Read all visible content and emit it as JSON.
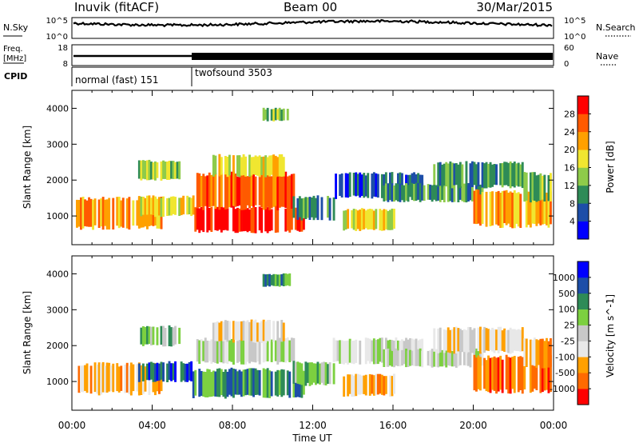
{
  "header": {
    "station": "Inuvik (fitACF)",
    "beam": "Beam 00",
    "date": "30/Mar/2015"
  },
  "chart_data": [
    {
      "panel": "nsky-nsearch",
      "type": "line",
      "left_label": "N.Sky",
      "right_label": "N.Search",
      "left_ticks": [
        "10^5",
        "10^0"
      ],
      "right_ticks": [
        "10^5",
        "10^0"
      ]
    },
    {
      "panel": "freq-nave",
      "type": "line",
      "left_label_lines": [
        "Freq.",
        "[MHz]"
      ],
      "right_label": "Nave",
      "left_ticks": [
        "18",
        "8"
      ],
      "right_ticks": [
        "60",
        "0"
      ]
    },
    {
      "panel": "cpid",
      "type": "table",
      "label": "CPID",
      "modes": [
        {
          "name": "normal (fast) 151",
          "start_hour": 0,
          "end_hour": 6
        },
        {
          "name": "twofsound 3503",
          "start_hour": 6,
          "end_hour": 24
        }
      ]
    },
    {
      "panel": "power",
      "type": "heatmap",
      "ylabel": "Slant Range [km]",
      "ylim": [
        200,
        4500
      ],
      "yticks": [
        1000,
        2000,
        3000,
        4000
      ],
      "colorbar_label": "Power [dB]",
      "colorbar_ticks": [
        "28",
        "24",
        "20",
        "16",
        "12",
        "8",
        "4"
      ],
      "colors": [
        "#0000ff",
        "#1d4ea8",
        "#2e8b57",
        "#8ecb4a",
        "#f0e630",
        "#ffa000",
        "#ff5a00",
        "#ff0000"
      ],
      "regions": [
        {
          "t0": 0.2,
          "t1": 4.5,
          "r0": 650,
          "r1": 1500,
          "level": 5
        },
        {
          "t0": 3.3,
          "t1": 6.0,
          "r0": 1000,
          "r1": 1550,
          "level": 4
        },
        {
          "t0": 3.3,
          "t1": 5.3,
          "r0": 2000,
          "r1": 2550,
          "level": 3
        },
        {
          "t0": 6.0,
          "t1": 11.5,
          "r0": 550,
          "r1": 1250,
          "level": 7
        },
        {
          "t0": 6.2,
          "t1": 11.0,
          "r0": 1200,
          "r1": 2200,
          "level": 6
        },
        {
          "t0": 7.0,
          "t1": 10.5,
          "r0": 2100,
          "r1": 2700,
          "level": 4
        },
        {
          "t0": 9.5,
          "t1": 10.8,
          "r0": 3650,
          "r1": 4000,
          "level": 3
        },
        {
          "t0": 11.0,
          "t1": 13.0,
          "r0": 900,
          "r1": 1550,
          "level": 2
        },
        {
          "t0": 13.0,
          "t1": 17.5,
          "r0": 1500,
          "r1": 2200,
          "level": 1
        },
        {
          "t0": 13.5,
          "t1": 16.0,
          "r0": 600,
          "r1": 1200,
          "level": 4
        },
        {
          "t0": 15.5,
          "t1": 20.5,
          "r0": 1400,
          "r1": 1900,
          "level": 2
        },
        {
          "t0": 18.0,
          "t1": 22.5,
          "r0": 1800,
          "r1": 2500,
          "level": 2
        },
        {
          "t0": 20.0,
          "t1": 23.9,
          "r0": 700,
          "r1": 1700,
          "level": 5
        },
        {
          "t0": 22.5,
          "t1": 23.9,
          "r0": 1400,
          "r1": 2200,
          "level": 3
        }
      ]
    },
    {
      "panel": "velocity",
      "type": "heatmap",
      "ylabel": "Slant Range [km]",
      "ylim": [
        200,
        4500
      ],
      "yticks": [
        1000,
        2000,
        3000,
        4000
      ],
      "colorbar_label": "Velocity [m s^-1]",
      "colorbar_ticks": [
        "1000",
        "500",
        "100",
        "25",
        "-25",
        "-100",
        "-500",
        "-1000"
      ],
      "colors": [
        "#ff0000",
        "#ff6a00",
        "#ffa000",
        "#e8e8e8",
        "#c8c8c8",
        "#7cd040",
        "#2e8b57",
        "#1d4ea8",
        "#0000ff"
      ],
      "regions": [
        {
          "t0": 0.2,
          "t1": 4.5,
          "r0": 650,
          "r1": 1500,
          "level": 2
        },
        {
          "t0": 3.3,
          "t1": 6.0,
          "r0": 1000,
          "r1": 1550,
          "level": 7
        },
        {
          "t0": 3.3,
          "t1": 5.3,
          "r0": 2000,
          "r1": 2550,
          "level": 5
        },
        {
          "t0": 6.0,
          "t1": 11.5,
          "r0": 550,
          "r1": 1350,
          "level": 6
        },
        {
          "t0": 6.2,
          "t1": 11.0,
          "r0": 1500,
          "r1": 2200,
          "level": 4
        },
        {
          "t0": 7.0,
          "t1": 10.5,
          "r0": 2100,
          "r1": 2700,
          "level": 3
        },
        {
          "t0": 9.5,
          "t1": 10.8,
          "r0": 3650,
          "r1": 4000,
          "level": 6
        },
        {
          "t0": 11.0,
          "t1": 13.0,
          "r0": 900,
          "r1": 1550,
          "level": 5
        },
        {
          "t0": 13.0,
          "t1": 17.5,
          "r0": 1500,
          "r1": 2200,
          "level": 4
        },
        {
          "t0": 13.5,
          "t1": 16.0,
          "r0": 600,
          "r1": 1200,
          "level": 2
        },
        {
          "t0": 15.5,
          "t1": 20.5,
          "r0": 1400,
          "r1": 1900,
          "level": 4
        },
        {
          "t0": 18.0,
          "t1": 22.5,
          "r0": 1800,
          "r1": 2500,
          "level": 3
        },
        {
          "t0": 20.0,
          "t1": 23.9,
          "r0": 700,
          "r1": 1700,
          "level": 1
        },
        {
          "t0": 22.5,
          "t1": 23.9,
          "r0": 1400,
          "r1": 2200,
          "level": 2
        }
      ]
    }
  ],
  "xaxis": {
    "label": "Time UT",
    "ticks": [
      "00:00",
      "04:00",
      "08:00",
      "12:00",
      "16:00",
      "20:00",
      "00:00"
    ],
    "xlim_hours": [
      0,
      24
    ]
  }
}
